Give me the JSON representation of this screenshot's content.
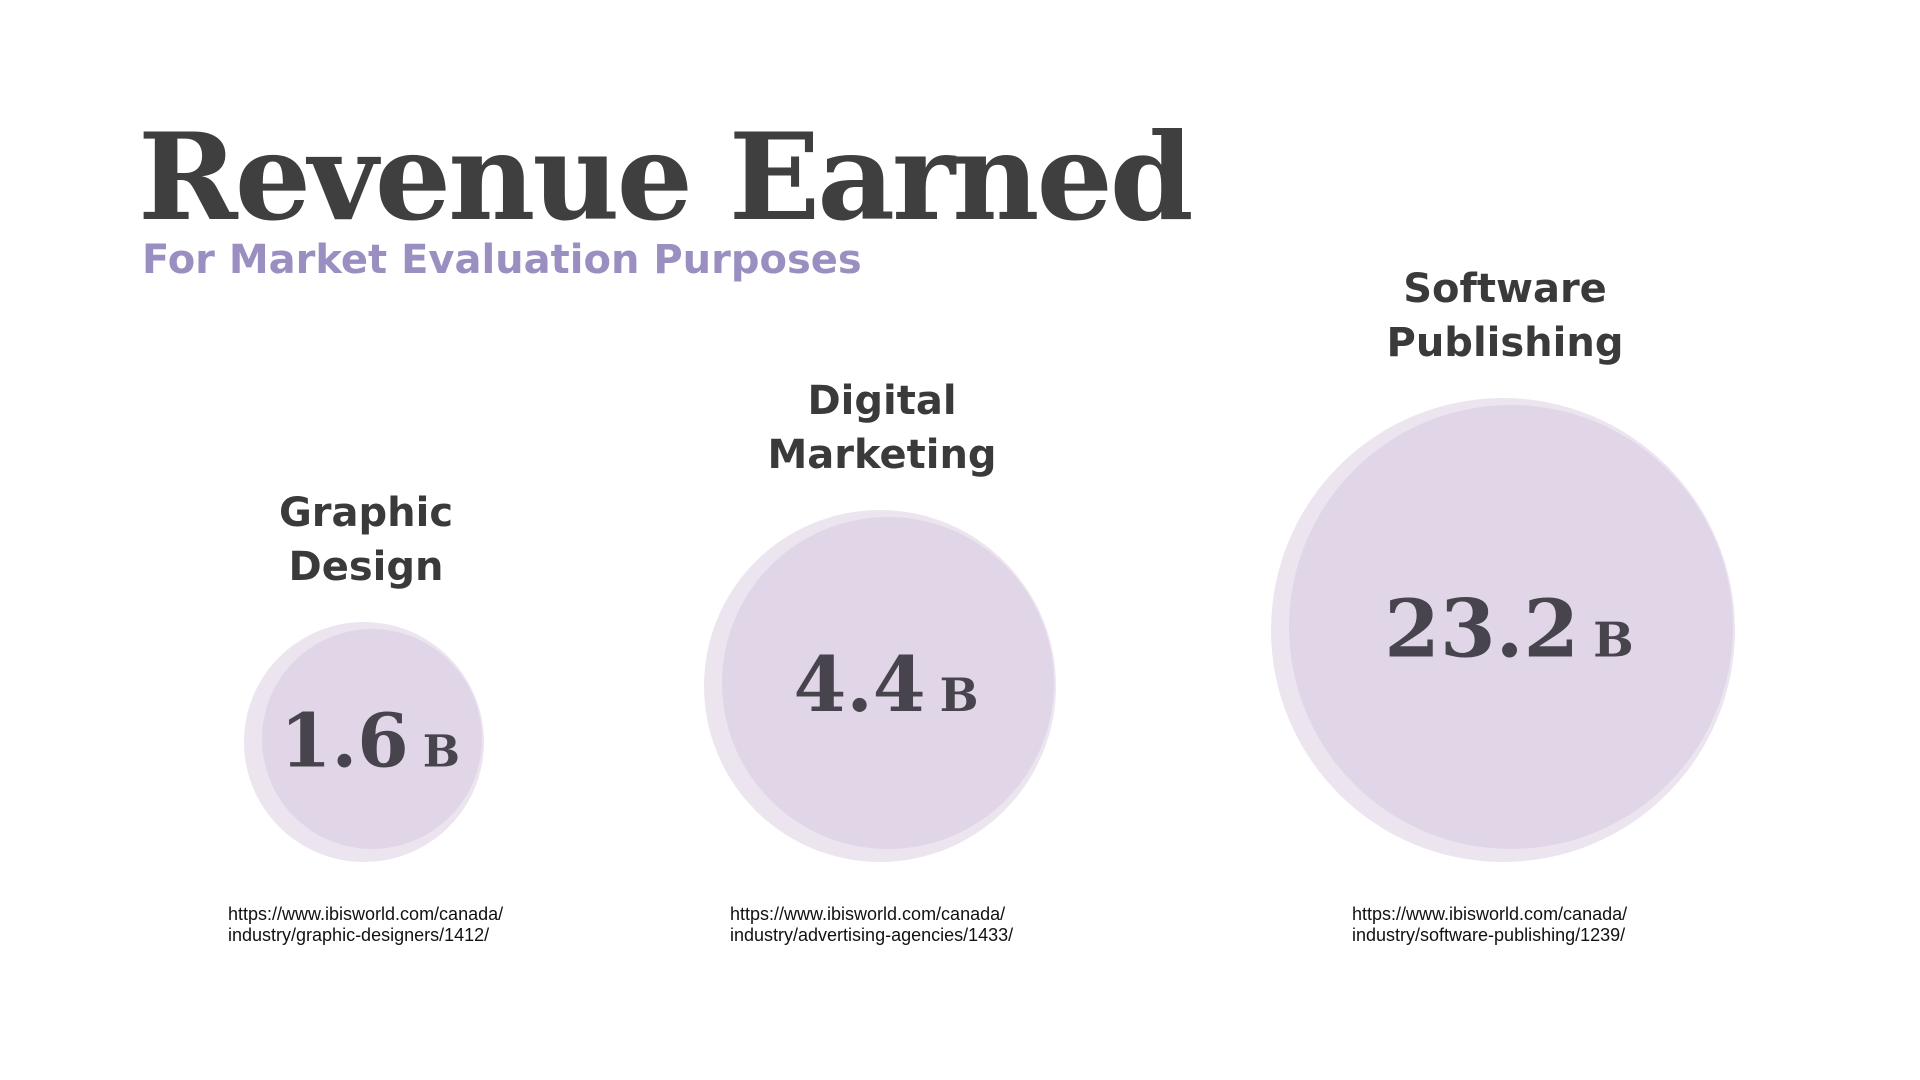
{
  "colors": {
    "title": "#3f3f3f",
    "subtitle": "#9a8fc0",
    "bubble": "#e0d6e7",
    "bubble_shadow": "#ece5f0",
    "label": "#3a3a3a",
    "value": "#48444d"
  },
  "chart_data": {
    "type": "bubble",
    "title": "Revenue Earned",
    "subtitle": "For Market Evaluation Purposes",
    "unit": "B",
    "categories": [
      "Graphic Design",
      "Digital Marketing",
      "Software Publishing"
    ],
    "label_lines": [
      [
        "Graphic",
        "Design"
      ],
      [
        "Digital",
        "Marketing"
      ],
      [
        "Software",
        "Publishing"
      ]
    ],
    "values": [
      1.6,
      4.4,
      23.2
    ],
    "value_labels": [
      "1.6",
      "4.4",
      "23.2"
    ],
    "sources": [
      [
        "https://www.ibisworld.com/canada/",
        "industry/graphic-designers/1412/"
      ],
      [
        "https://www.ibisworld.com/canada/",
        "industry/advertising-agencies/1433/"
      ],
      [
        "https://www.ibisworld.com/canada/",
        "industry/software-publishing/1239/"
      ]
    ]
  }
}
